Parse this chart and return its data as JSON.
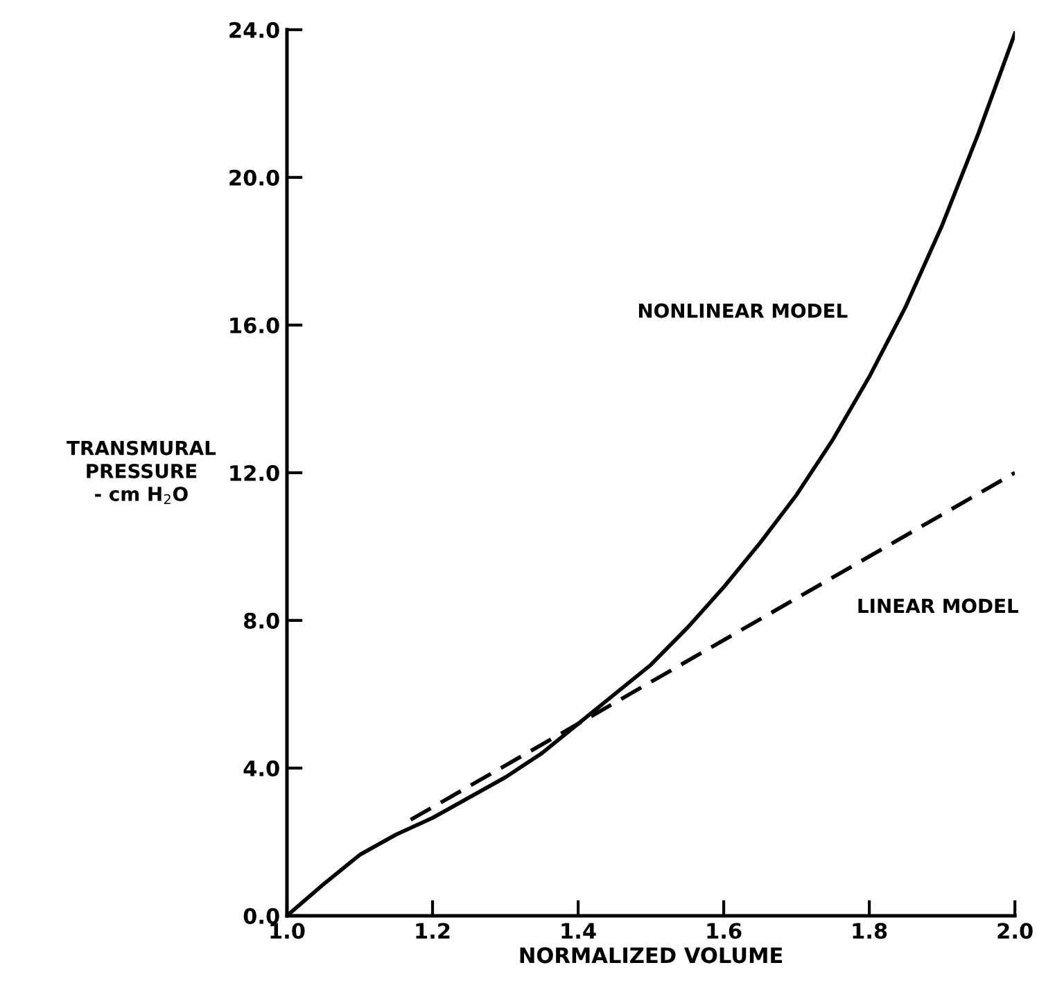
{
  "chart_data": {
    "type": "line",
    "xlabel": "NORMALIZED VOLUME",
    "ylabel": "TRANSMURAL\nPRESSURE\n- cm H$_{2}$O",
    "xlim": [
      1.0,
      2.0
    ],
    "ylim": [
      0.0,
      24.0
    ],
    "xticks": [
      {
        "value": 1.0,
        "label": "1.0"
      },
      {
        "value": 1.2,
        "label": "1.2"
      },
      {
        "value": 1.4,
        "label": "1.4"
      },
      {
        "value": 1.6,
        "label": "1.6"
      },
      {
        "value": 1.8,
        "label": "1.8"
      },
      {
        "value": 2.0,
        "label": "2.0"
      }
    ],
    "yticks": [
      {
        "value": 0,
        "label": "0.0"
      },
      {
        "value": 4,
        "label": "4.0"
      },
      {
        "value": 8,
        "label": "8.0"
      },
      {
        "value": 12,
        "label": "12.0"
      },
      {
        "value": 16,
        "label": "16.0"
      },
      {
        "value": 20,
        "label": "20.0"
      },
      {
        "value": 24,
        "label": "24.0"
      }
    ],
    "grid": false,
    "legend": false,
    "marker": "none",
    "series": [
      {
        "name": "NONLINEAR MODEL",
        "color": "#000000",
        "line_style": "solid",
        "x": [
          1.0,
          1.05,
          1.1,
          1.15,
          1.2,
          1.25,
          1.3,
          1.35,
          1.4,
          1.45,
          1.5,
          1.55,
          1.6,
          1.65,
          1.7,
          1.75,
          1.8,
          1.85,
          1.9,
          1.95,
          2.0
        ],
        "values": [
          0.0,
          0.85,
          1.65,
          2.2,
          2.65,
          3.2,
          3.75,
          4.4,
          5.2,
          6.0,
          6.8,
          7.8,
          8.9,
          10.1,
          11.4,
          12.9,
          14.6,
          16.5,
          18.7,
          21.2,
          23.9
        ]
      },
      {
        "name": "LINEAR MODEL",
        "color": "#000000",
        "line_style": "dashed",
        "x": [
          1.17,
          1.4,
          2.0
        ],
        "values": [
          2.6,
          5.2,
          12.0
        ]
      }
    ]
  }
}
